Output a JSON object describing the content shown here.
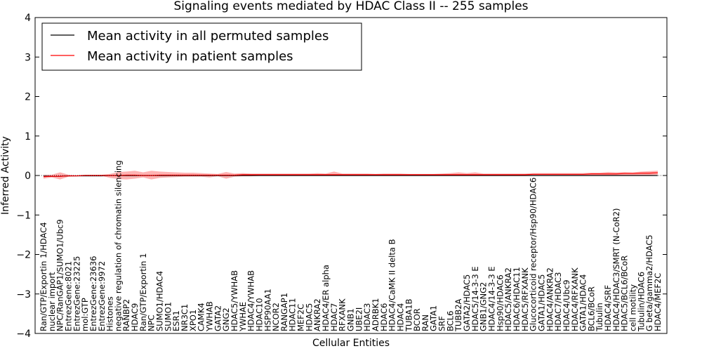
{
  "chart_data": {
    "type": "line",
    "title": "Signaling events mediated by HDAC Class II -- 255 samples",
    "xlabel": "Cellular Entities",
    "ylabel": "Inferred Activity",
    "ylim": [
      -4,
      4
    ],
    "yticks": [
      -4,
      -3,
      -2,
      -1,
      0,
      1,
      2,
      3,
      4
    ],
    "ytick_labels": [
      "−4",
      "−3",
      "−2",
      "−1",
      "0",
      "1",
      "2",
      "3",
      "4"
    ],
    "legend": {
      "position": "top-left"
    },
    "categories": [
      "Ran/GTP/Exportin 1/HDAC4",
      "nuclear import",
      "NPC/RanGAP1/SUMO1/Ubc9",
      "EntrezGene:8021",
      "EntrezGene:23225",
      "mol:GTP",
      "EntrezGene:23636",
      "EntrezGene:9972",
      "Histones",
      "negative regulation of chromatin silencing",
      "RANBP2",
      "HDAC9",
      "Ran/GTP/Exportin 1",
      "NPC",
      "SUMO1/HDAC4",
      "SUMO1",
      "ESR1",
      "NR3C1",
      "XPO1",
      "CAMK4",
      "YWHAB",
      "GATA2",
      "GNG2",
      "HDAC5/YWHAB",
      "YWHAE",
      "HDAC4/YWHAB",
      "HDAC10",
      "HSP90AA1",
      "NCOR2",
      "RANGAP1",
      "HDAC11",
      "MEF2C",
      "HDAC5",
      "ANKRA2",
      "HDAC4/ER alpha",
      "HDAC7",
      "RFXANK",
      "GNB1",
      "UBE2I",
      "HDAC3",
      "ADRBK1",
      "HDAC6",
      "HDAC4/CaMK II delta B",
      "HDAC4",
      "TUBA1B",
      "BCOR",
      "RAN",
      "GATA1",
      "SRF",
      "BCL6",
      "TUBB2A",
      "GATA2/HDAC5",
      "HDAC5/14-3-3 E",
      "GNB1/GNG2",
      "HDAC4/14-3-3 E",
      "Hsp90/HDAC6",
      "HDAC5/ANKRA2",
      "HDAC6/HDAC11",
      "HDAC5/RFXANK",
      "Glucocorticoid receptor/Hsp90/HDAC6",
      "GATA1/HDAC5",
      "HDAC4/ANKRA2",
      "HDAC7/HDAC3",
      "HDAC4/Ubc9",
      "HDAC4/RFXANK",
      "GATA1/HDAC4",
      "BCL6/BCoR",
      "Tubulin",
      "HDAC4/SRF",
      "HDAC4/HDAC3/SMRT (N-CoR2)",
      "HDAC5/BCL6/BCoR",
      "cell motility",
      "Tubulin/HDAC6",
      "G beta/gamma2/HDAC5",
      "HDAC4/MEF2C"
    ],
    "series": [
      {
        "name": "Mean activity in all permuted samples",
        "color": "#000000",
        "values": [
          -0.02,
          -0.02,
          -0.02,
          -0.01,
          -0.01,
          -0.01,
          -0.01,
          -0.01,
          0.0,
          0.0,
          0.0,
          0.0,
          0.0,
          0.0,
          0.0,
          0.0,
          0.0,
          0.0,
          0.0,
          0.0,
          0.0,
          0.0,
          0.0,
          0.0,
          0.0,
          0.0,
          0.0,
          0.0,
          0.0,
          0.0,
          0.0,
          0.0,
          0.0,
          0.0,
          0.0,
          0.0,
          0.0,
          0.0,
          0.0,
          0.0,
          0.0,
          0.0,
          0.0,
          0.0,
          0.0,
          0.0,
          0.0,
          0.0,
          0.0,
          0.0,
          0.0,
          0.0,
          0.0,
          0.0,
          0.0,
          0.0,
          0.0,
          0.0,
          0.0,
          0.0,
          0.0,
          0.0,
          0.0,
          0.0,
          0.0,
          0.0,
          0.0,
          0.0,
          0.0,
          0.0,
          0.0,
          0.0,
          0.0,
          0.0,
          0.0
        ],
        "lower": [
          -0.03,
          -0.03,
          -0.03,
          -0.02,
          -0.02,
          -0.02,
          -0.02,
          -0.02,
          -0.01,
          -0.01,
          -0.01,
          -0.01,
          -0.01,
          -0.01,
          -0.01,
          -0.01,
          -0.01,
          -0.01,
          -0.01,
          -0.01,
          -0.01,
          -0.01,
          -0.01,
          -0.01,
          -0.01,
          -0.01,
          -0.01,
          -0.01,
          -0.01,
          -0.01,
          -0.01,
          -0.01,
          -0.01,
          -0.01,
          -0.01,
          -0.01,
          -0.01,
          -0.01,
          -0.01,
          -0.01,
          -0.01,
          -0.01,
          -0.01,
          -0.01,
          -0.01,
          -0.01,
          -0.01,
          -0.01,
          -0.01,
          -0.01,
          -0.01,
          -0.01,
          -0.01,
          -0.01,
          -0.01,
          -0.01,
          -0.01,
          -0.01,
          -0.01,
          -0.01,
          -0.01,
          -0.01,
          -0.01,
          -0.01,
          -0.01,
          -0.01,
          -0.01,
          -0.01,
          -0.01,
          -0.01,
          -0.01,
          -0.01,
          -0.01,
          -0.01,
          -0.01
        ],
        "upper": [
          0.0,
          0.0,
          0.0,
          0.01,
          0.01,
          0.01,
          0.01,
          0.01,
          0.01,
          0.01,
          0.01,
          0.01,
          0.01,
          0.01,
          0.01,
          0.01,
          0.01,
          0.01,
          0.01,
          0.01,
          0.01,
          0.01,
          0.01,
          0.01,
          0.01,
          0.01,
          0.01,
          0.01,
          0.01,
          0.01,
          0.01,
          0.01,
          0.01,
          0.01,
          0.01,
          0.01,
          0.01,
          0.01,
          0.01,
          0.01,
          0.01,
          0.01,
          0.01,
          0.01,
          0.01,
          0.01,
          0.01,
          0.01,
          0.01,
          0.01,
          0.01,
          0.01,
          0.01,
          0.01,
          0.01,
          0.01,
          0.01,
          0.01,
          0.01,
          0.01,
          0.01,
          0.01,
          0.01,
          0.01,
          0.01,
          0.01,
          0.01,
          0.01,
          0.01,
          0.01,
          0.01,
          0.01,
          0.01,
          0.01,
          0.01
        ]
      },
      {
        "name": "Mean activity in patient samples",
        "color": "#ff0000",
        "values": [
          -0.03,
          -0.02,
          -0.02,
          -0.01,
          -0.01,
          0.0,
          0.0,
          0.0,
          0.0,
          0.0,
          0.01,
          0.01,
          0.0,
          0.0,
          0.01,
          0.01,
          0.01,
          0.01,
          0.01,
          0.01,
          0.01,
          0.01,
          0.01,
          0.01,
          0.02,
          0.02,
          0.02,
          0.02,
          0.02,
          0.02,
          0.02,
          0.02,
          0.02,
          0.02,
          0.02,
          0.02,
          0.02,
          0.02,
          0.02,
          0.02,
          0.02,
          0.02,
          0.02,
          0.02,
          0.02,
          0.02,
          0.02,
          0.02,
          0.02,
          0.02,
          0.02,
          0.02,
          0.02,
          0.02,
          0.02,
          0.02,
          0.02,
          0.02,
          0.02,
          0.03,
          0.03,
          0.03,
          0.03,
          0.03,
          0.03,
          0.03,
          0.04,
          0.04,
          0.04,
          0.04,
          0.05,
          0.05,
          0.06,
          0.06,
          0.07
        ],
        "lower": [
          -0.08,
          -0.05,
          -0.1,
          -0.03,
          -0.02,
          -0.01,
          -0.01,
          -0.01,
          -0.06,
          -0.09,
          -0.1,
          -0.08,
          -0.05,
          -0.1,
          -0.06,
          -0.05,
          -0.04,
          -0.03,
          -0.03,
          -0.03,
          -0.05,
          -0.02,
          -0.08,
          -0.03,
          -0.02,
          -0.02,
          -0.01,
          -0.01,
          -0.01,
          -0.01,
          -0.01,
          -0.01,
          -0.01,
          0.0,
          -0.01,
          -0.01,
          0.0,
          0.0,
          0.0,
          0.0,
          0.0,
          0.0,
          0.0,
          -0.01,
          0.0,
          0.0,
          0.0,
          0.0,
          0.0,
          0.0,
          0.0,
          -0.01,
          0.0,
          -0.01,
          0.0,
          0.0,
          0.0,
          0.0,
          0.0,
          0.0,
          0.0,
          0.0,
          0.0,
          0.0,
          0.0,
          0.0,
          0.01,
          0.0,
          0.0,
          0.0,
          0.01,
          0.01,
          0.01,
          0.01,
          0.02
        ],
        "upper": [
          0.02,
          0.02,
          0.08,
          0.02,
          0.01,
          0.02,
          0.02,
          0.02,
          0.04,
          0.09,
          0.1,
          0.12,
          0.08,
          0.12,
          0.1,
          0.09,
          0.08,
          0.07,
          0.07,
          0.06,
          0.05,
          0.04,
          0.09,
          0.05,
          0.06,
          0.05,
          0.05,
          0.05,
          0.05,
          0.05,
          0.05,
          0.05,
          0.05,
          0.06,
          0.05,
          0.1,
          0.05,
          0.05,
          0.05,
          0.05,
          0.04,
          0.05,
          0.05,
          0.05,
          0.04,
          0.04,
          0.04,
          0.04,
          0.05,
          0.06,
          0.08,
          0.06,
          0.08,
          0.05,
          0.05,
          0.05,
          0.05,
          0.05,
          0.05,
          0.06,
          0.06,
          0.06,
          0.06,
          0.06,
          0.06,
          0.06,
          0.07,
          0.07,
          0.09,
          0.08,
          0.09,
          0.08,
          0.1,
          0.11,
          0.12
        ]
      }
    ]
  }
}
